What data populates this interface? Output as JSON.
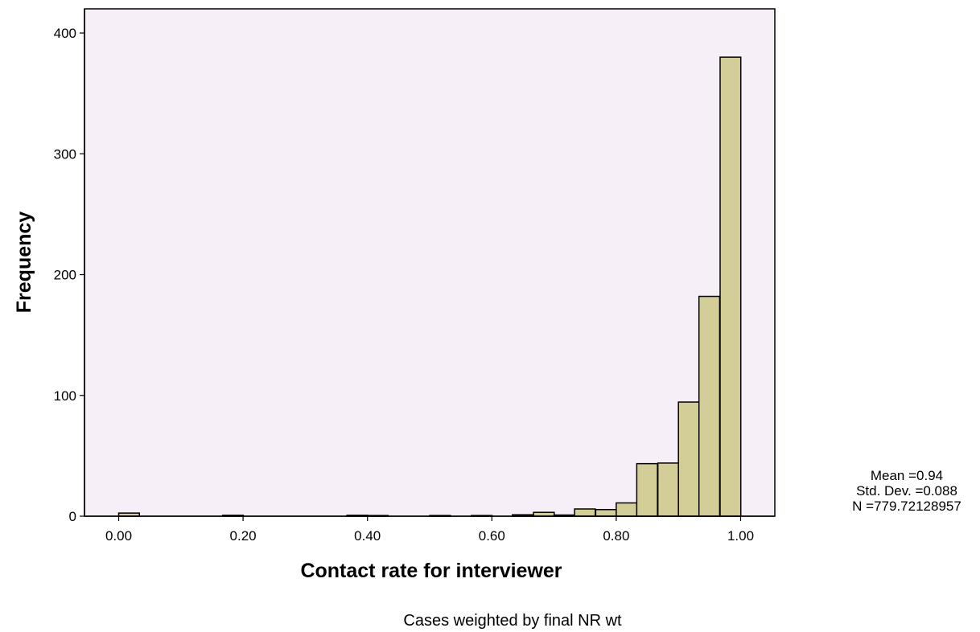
{
  "chart_data": {
    "type": "bar",
    "subtype": "histogram",
    "xlabel": "Contact rate for interviewer",
    "ylabel": "Frequency",
    "xlim": [
      -0.055,
      1.055
    ],
    "ylim": [
      0,
      420
    ],
    "x_ticks": [
      {
        "value": 0.0,
        "label": "0.00"
      },
      {
        "value": 0.2,
        "label": "0.20"
      },
      {
        "value": 0.4,
        "label": "0.40"
      },
      {
        "value": 0.6,
        "label": "0.60"
      },
      {
        "value": 0.8,
        "label": "0.80"
      },
      {
        "value": 1.0,
        "label": "1.00"
      }
    ],
    "y_ticks": [
      {
        "value": 0,
        "label": "0"
      },
      {
        "value": 100,
        "label": "100"
      },
      {
        "value": 200,
        "label": "200"
      },
      {
        "value": 300,
        "label": "300"
      },
      {
        "value": 400,
        "label": "400"
      }
    ],
    "bin_width": 0.0333,
    "bins": [
      {
        "start": 0.0,
        "value": 2.6
      },
      {
        "start": 0.167,
        "value": 0.8
      },
      {
        "start": 0.367,
        "value": 0.8
      },
      {
        "start": 0.4,
        "value": 0.6
      },
      {
        "start": 0.5,
        "value": 0.6
      },
      {
        "start": 0.567,
        "value": 0.6
      },
      {
        "start": 0.633,
        "value": 1.2
      },
      {
        "start": 0.667,
        "value": 3.2
      },
      {
        "start": 0.7,
        "value": 1.0
      },
      {
        "start": 0.733,
        "value": 6.0
      },
      {
        "start": 0.767,
        "value": 5.5
      },
      {
        "start": 0.8,
        "value": 11.0
      },
      {
        "start": 0.833,
        "value": 43.5
      },
      {
        "start": 0.867,
        "value": 44.0
      },
      {
        "start": 0.9,
        "value": 94.5
      },
      {
        "start": 0.933,
        "value": 182.0
      },
      {
        "start": 0.967,
        "value": 380.0
      }
    ],
    "grid": false,
    "colors": {
      "plot_background": "#f6eff7",
      "bar_fill": "#d3ce97",
      "bar_stroke": "#000000",
      "axis": "#000000"
    },
    "stats": {
      "mean": "Mean =0.94",
      "std_dev": "Std. Dev. =0.088",
      "n": "N =779.72128957"
    },
    "footnote": "Cases weighted by final NR wt"
  }
}
